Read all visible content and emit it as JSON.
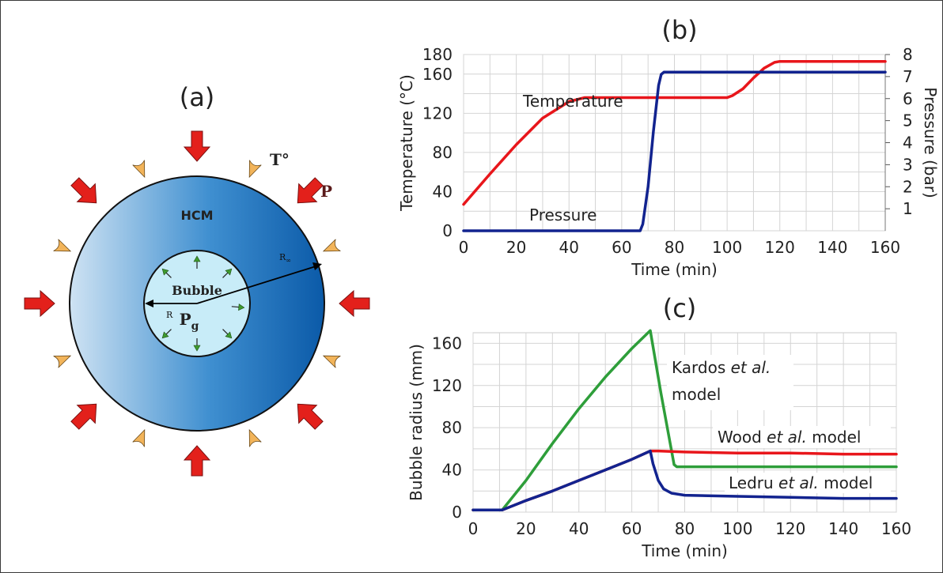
{
  "panel_a": {
    "label": "(a)",
    "medium_label": "HCM",
    "bubble_label": "Bubble",
    "pressure_gas_main": "P",
    "pressure_gas_sub": "g",
    "radius_inner": "R",
    "radius_outer_main": "R",
    "radius_outer_sub": "∞",
    "temperature_label": "T°",
    "pressure_label": "P",
    "colors": {
      "medium_light": "#cfe3f3",
      "medium_dark": "#0b5aa8",
      "bubble": "#c8ecf8",
      "pressure_arrow": "#e3201b",
      "temperature_marker": "#f2b45a",
      "gas_arrow": "#3e9a2e"
    }
  },
  "chart_data": [
    {
      "panel": "(b)",
      "type": "line",
      "xlabel": "Time (min)",
      "ylabel": "Temperature (°C)",
      "y2label": "Pressure (bar)",
      "xlim": [
        0,
        160
      ],
      "ylim": [
        0,
        180
      ],
      "y2lim": [
        0,
        8
      ],
      "xticks": [
        "0",
        "20",
        "40",
        "60",
        "80",
        "100",
        "120",
        "140",
        "160"
      ],
      "yticks": [
        "0",
        "40",
        "80",
        "120",
        "160",
        "180"
      ],
      "y2ticks": [
        "1",
        "2",
        "3",
        "4",
        "5",
        "6",
        "7",
        "8"
      ],
      "grid": true,
      "series": [
        {
          "name": "Temperature",
          "axis": "left",
          "color": "#e8161b",
          "x": [
            0,
            10,
            20,
            30,
            40,
            46,
            60,
            80,
            100,
            102,
            106,
            110,
            114,
            118,
            120,
            140,
            160
          ],
          "y": [
            27,
            58,
            88,
            115,
            132,
            136,
            136,
            136,
            136,
            138,
            145,
            156,
            166,
            172,
            173,
            173,
            173
          ]
        },
        {
          "name": "Pressure",
          "axis": "right",
          "color": "#12238f",
          "x": [
            0,
            20,
            40,
            60,
            67,
            68,
            70,
            72,
            74,
            75,
            76,
            80,
            100,
            120,
            140,
            160
          ],
          "y": [
            0,
            0,
            0,
            0,
            0,
            0.3,
            2.0,
            4.5,
            6.6,
            7.1,
            7.2,
            7.2,
            7.2,
            7.2,
            7.2,
            7.2
          ]
        }
      ]
    },
    {
      "panel": "(c)",
      "type": "line",
      "xlabel": "Time (min)",
      "ylabel": "Bubble radius (mm)",
      "xlim": [
        0,
        160
      ],
      "ylim": [
        0,
        170
      ],
      "xticks": [
        "0",
        "20",
        "40",
        "60",
        "80",
        "100",
        "120",
        "140",
        "160"
      ],
      "yticks": [
        "0",
        "40",
        "80",
        "120",
        "160"
      ],
      "grid": true,
      "series": [
        {
          "name": "Kardos et al. model",
          "name_main": "Kardos ",
          "name_italic": "et al.",
          "name_line2": "model",
          "color": "#2e9e3a",
          "x": [
            0,
            11,
            20,
            30,
            40,
            50,
            60,
            67,
            71,
            76,
            77,
            80,
            100,
            120,
            140,
            160
          ],
          "y": [
            2,
            2,
            30,
            65,
            98,
            128,
            155,
            172,
            113,
            45,
            43,
            43,
            43,
            43,
            43,
            43
          ]
        },
        {
          "name": "Wood et al. model",
          "name_main": "Wood ",
          "name_italic": "et al.",
          "name_tail": " model",
          "color": "#e8161b",
          "x": [
            0,
            11,
            20,
            30,
            40,
            50,
            60,
            67,
            70,
            80,
            100,
            120,
            140,
            160
          ],
          "y": [
            2,
            2,
            11,
            20,
            30,
            40,
            50,
            58,
            58,
            57,
            56,
            56,
            55,
            55
          ]
        },
        {
          "name": "Ledru et al. model",
          "name_main": "Ledru ",
          "name_italic": "et al.",
          "name_tail": " model",
          "color": "#12238f",
          "x": [
            0,
            11,
            20,
            30,
            40,
            50,
            60,
            67,
            68,
            70,
            72,
            75,
            80,
            100,
            120,
            140,
            160
          ],
          "y": [
            2,
            2,
            11,
            20,
            30,
            40,
            50,
            58,
            46,
            30,
            22,
            18,
            16,
            15,
            14,
            13,
            13
          ]
        }
      ]
    }
  ]
}
